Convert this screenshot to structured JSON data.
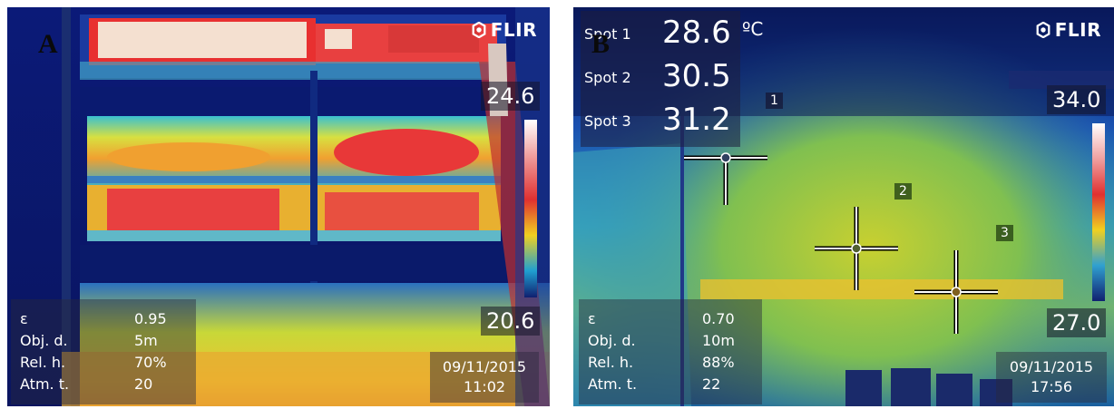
{
  "panel_a": {
    "letter": "A",
    "brand": "FLIR",
    "scale_max": "24.6",
    "scale_min": "20.6",
    "params": [
      {
        "label": "ε",
        "value": "0.95"
      },
      {
        "label": "Obj. d.",
        "value": "5m"
      },
      {
        "label": "Rel. h.",
        "value": "70%"
      },
      {
        "label": "Atm. t.",
        "value": "20"
      }
    ],
    "date": "09/11/2015",
    "time": "11:02"
  },
  "panel_b": {
    "letter": "B",
    "brand": "FLIR",
    "unit": "ºC",
    "spots": [
      {
        "label": "Spot 1",
        "value": "28.6"
      },
      {
        "label": "Spot 2",
        "value": "30.5"
      },
      {
        "label": "Spot 3",
        "value": "31.2"
      }
    ],
    "markers": [
      "1",
      "2",
      "3"
    ],
    "scale_max": "34.0",
    "scale_min": "27.0",
    "params": [
      {
        "label": "ε",
        "value": "0.70"
      },
      {
        "label": "Obj. d.",
        "value": "10m"
      },
      {
        "label": "Rel. h.",
        "value": "88%"
      },
      {
        "label": "Atm. t.",
        "value": "22"
      }
    ],
    "date": "09/11/2015",
    "time": "17:56"
  },
  "colors": {
    "thermal_cold": "#0a1a6a",
    "thermal_warm": "#f0d020",
    "thermal_hot": "#e82020"
  }
}
